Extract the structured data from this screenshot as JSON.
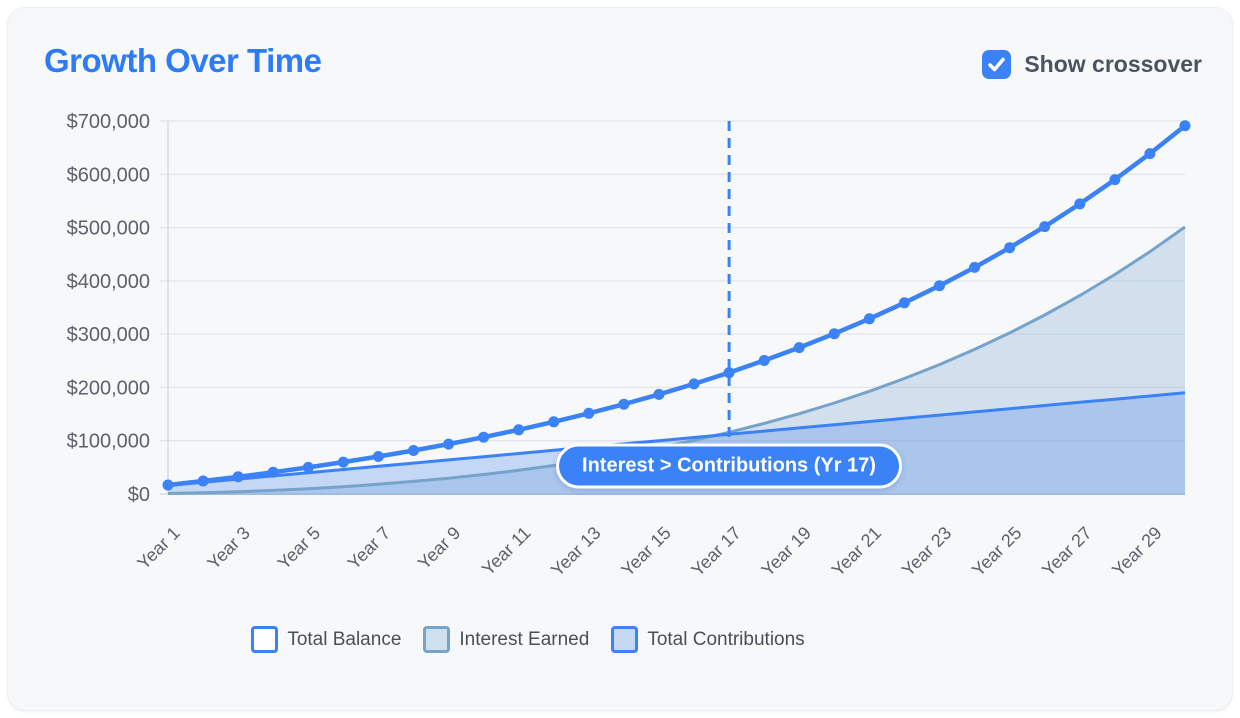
{
  "header": {
    "title": "Growth Over Time",
    "show_crossover_label": "Show crossover",
    "show_crossover_checked": true
  },
  "colors": {
    "accent_blue": "#3b82f6",
    "title_blue": "#2e7cf5",
    "interest_line": "#76a3cb",
    "card_background": "#f7f8fa",
    "gridline": "#e3e5eb",
    "axis_text": "#5c616b"
  },
  "chart_data": {
    "type": "line",
    "title": "Growth Over Time",
    "x_unit": "Year",
    "years": [
      1,
      2,
      3,
      4,
      5,
      6,
      7,
      8,
      9,
      10,
      11,
      12,
      13,
      14,
      15,
      16,
      17,
      18,
      19,
      20,
      21,
      22,
      23,
      24,
      25,
      26,
      27,
      28,
      29,
      30
    ],
    "x_ticks": [
      {
        "year": 1,
        "label": "Year 1"
      },
      {
        "year": 3,
        "label": "Year 3"
      },
      {
        "year": 5,
        "label": "Year 5"
      },
      {
        "year": 7,
        "label": "Year 7"
      },
      {
        "year": 9,
        "label": "Year 9"
      },
      {
        "year": 11,
        "label": "Year 11"
      },
      {
        "year": 13,
        "label": "Year 13"
      },
      {
        "year": 15,
        "label": "Year 15"
      },
      {
        "year": 17,
        "label": "Year 17"
      },
      {
        "year": 19,
        "label": "Year 19"
      },
      {
        "year": 21,
        "label": "Year 21"
      },
      {
        "year": 23,
        "label": "Year 23"
      },
      {
        "year": 25,
        "label": "Year 25"
      },
      {
        "year": 27,
        "label": "Year 27"
      },
      {
        "year": 29,
        "label": "Year 29"
      }
    ],
    "y_ticks": [
      {
        "value": 0,
        "label": "$0"
      },
      {
        "value": 100000,
        "label": "$100,000"
      },
      {
        "value": 200000,
        "label": "$200,000"
      },
      {
        "value": 300000,
        "label": "$300,000"
      },
      {
        "value": 400000,
        "label": "$400,000"
      },
      {
        "value": 500000,
        "label": "$500,000"
      },
      {
        "value": 600000,
        "label": "$600,000"
      },
      {
        "value": 700000,
        "label": "$700,000"
      }
    ],
    "ylim": [
      0,
      700000
    ],
    "grid": "horizontal",
    "legend_position": "bottom",
    "series": [
      {
        "name": "Total Balance",
        "style": "line-with-markers",
        "color": "#3b82f6",
        "swatch_fill": "#ffffff",
        "values": [
          16919,
          24339,
          32294,
          40825,
          49973,
          59782,
          70300,
          81578,
          93671,
          106639,
          120545,
          135455,
          151443,
          168587,
          186971,
          206683,
          227821,
          250486,
          274790,
          300851,
          328796,
          358761,
          390892,
          425346,
          462290,
          501906,
          544385,
          589934,
          638777,
          691150
        ]
      },
      {
        "name": "Interest Earned",
        "style": "area",
        "line_color": "#76a3cb",
        "fill_color": "rgba(110,160,205,0.27)",
        "swatch_fill": "#cfe0ee",
        "values": [
          919,
          2339,
          4294,
          6825,
          9973,
          13782,
          18300,
          23578,
          29671,
          36639,
          44545,
          53455,
          63443,
          74587,
          86971,
          100683,
          115821,
          132486,
          150790,
          170851,
          192796,
          216761,
          242892,
          271346,
          302290,
          335906,
          372385,
          411934,
          454777,
          501150
        ]
      },
      {
        "name": "Total Contributions",
        "style": "area",
        "line_color": "#3b82f6",
        "fill_color": "rgba(80,140,235,0.30)",
        "swatch_fill": "#c5d8f4",
        "values": [
          16000,
          22000,
          28000,
          34000,
          40000,
          46000,
          52000,
          58000,
          64000,
          70000,
          76000,
          82000,
          88000,
          94000,
          100000,
          106000,
          112000,
          118000,
          124000,
          130000,
          136000,
          142000,
          148000,
          154000,
          160000,
          166000,
          172000,
          178000,
          184000,
          190000
        ]
      }
    ],
    "annotation": {
      "label": "Interest > Contributions (Yr 17)",
      "year": 17,
      "line_style": "dashed",
      "color": "#3b82f6"
    }
  }
}
